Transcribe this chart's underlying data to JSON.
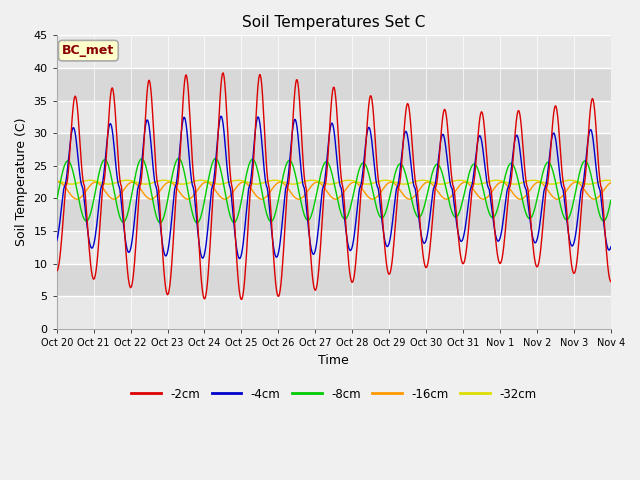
{
  "title": "Soil Temperatures Set C",
  "xlabel": "Time",
  "ylabel": "Soil Temperature (C)",
  "annotation": "BC_met",
  "ylim": [
    0,
    45
  ],
  "series_colors": [
    "#dd0000",
    "#0000cc",
    "#00cc00",
    "#ff9900",
    "#dddd00"
  ],
  "series_labels": [
    "-2cm",
    "-4cm",
    "-8cm",
    "-16cm",
    "-32cm"
  ],
  "fig_bg_color": "#f0f0f0",
  "plot_bg_color": "#e8e8e8",
  "grid_color": "#ffffff",
  "xtick_labels": [
    "Oct 20",
    "Oct 21",
    "Oct 22",
    "Oct 23",
    "Oct 24",
    "Oct 25",
    "Oct 26",
    "Oct 27",
    "Oct 28",
    "Oct 29",
    "Oct 30",
    "Oct 31",
    "Nov 1",
    "Nov 2",
    "Nov 3",
    "Nov 4"
  ],
  "yticks": [
    0,
    5,
    10,
    15,
    20,
    25,
    30,
    35,
    40,
    45
  ],
  "band_colors": [
    "#e8e8e8",
    "#d8d8d8"
  ],
  "n_per_day": 48
}
